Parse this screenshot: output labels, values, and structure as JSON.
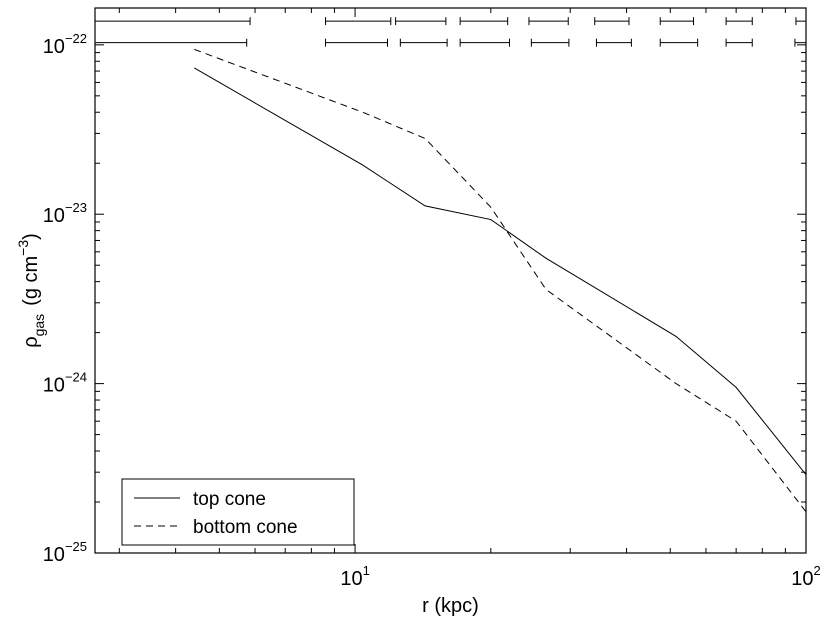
{
  "chart_data": {
    "type": "line",
    "title": "",
    "xlabel": "r (kpc)",
    "ylabel": {
      "main": "ρ",
      "sub": "gas",
      "units": "(g cm",
      "units_exp": "−3",
      "units_close": ")"
    },
    "xscale": "log",
    "yscale": "log",
    "xlim": [
      2.65,
      100
    ],
    "ylim": [
      1e-25,
      1.65e-22
    ],
    "grid": false,
    "legend_position": "bottom-left",
    "x_ticks": [
      {
        "value": 10,
        "base": "10",
        "exp": "1"
      },
      {
        "value": 100,
        "base": "10",
        "exp": "2"
      }
    ],
    "y_ticks": [
      {
        "value": 1e-25,
        "base": "10",
        "exp": "−25"
      },
      {
        "value": 1e-24,
        "base": "10",
        "exp": "−24"
      },
      {
        "value": 1e-23,
        "base": "10",
        "exp": "−23"
      },
      {
        "value": 1e-22,
        "base": "10",
        "exp": "−22"
      }
    ],
    "series": [
      {
        "name": "top cone",
        "style": "solid",
        "color": "#000000",
        "x": [
          4.4,
          10.4,
          14.3,
          20.0,
          26.5,
          51.5,
          70.0,
          100.0
        ],
        "y": [
          7.3e-23,
          1.95e-23,
          1.12e-23,
          9.3e-24,
          5.5e-24,
          1.9e-24,
          9.5e-25,
          2.9e-25
        ]
      },
      {
        "name": "bottom cone",
        "style": "dashed",
        "color": "#000000",
        "x": [
          4.4,
          10.4,
          14.3,
          20.0,
          26.5,
          51.5,
          70.0,
          100.0
        ],
        "y": [
          9.4e-23,
          4e-23,
          2.8e-23,
          1.1e-23,
          3.6e-24,
          1e-24,
          6e-25,
          1.75e-25
        ]
      }
    ],
    "bin_bars": {
      "top_row_value": 1.38e-22,
      "bottom_row_value": 1.03e-22,
      "top_cone_bins": [
        [
          2.65,
          5.85
        ],
        [
          8.6,
          12.0
        ],
        [
          12.3,
          15.9
        ],
        [
          17.1,
          21.8
        ],
        [
          24.3,
          29.7
        ],
        [
          34.0,
          40.5
        ],
        [
          47.5,
          56.3
        ],
        [
          66.5,
          76.0
        ],
        [
          95.0,
          100.0
        ]
      ],
      "bottom_cone_bins": [
        [
          2.65,
          5.75
        ],
        [
          8.6,
          11.8
        ],
        [
          12.6,
          16.0
        ],
        [
          17.1,
          22.0
        ],
        [
          24.6,
          29.8
        ],
        [
          34.3,
          41.0
        ],
        [
          47.5,
          57.5
        ],
        [
          66.5,
          76.0
        ],
        [
          94.5,
          100.0
        ]
      ]
    },
    "legend": {
      "entries": [
        {
          "label": "top cone",
          "style": "solid"
        },
        {
          "label": "bottom cone",
          "style": "dashed"
        }
      ]
    }
  }
}
